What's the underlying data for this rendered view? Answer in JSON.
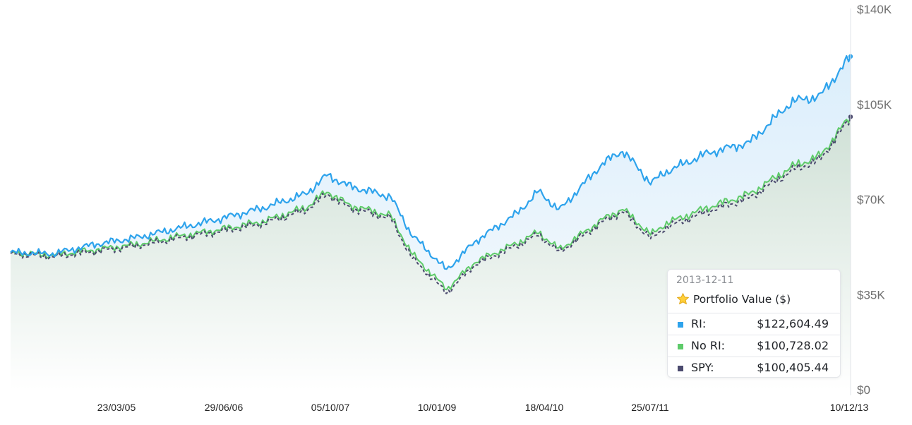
{
  "chart_data": {
    "type": "line",
    "title": "",
    "xlabel": "",
    "ylabel": "",
    "ylim": [
      0,
      140000
    ],
    "y_ticks": [
      "$0",
      "$35K",
      "$70K",
      "$105K",
      "$140K"
    ],
    "y_tick_values": [
      0,
      35000,
      70000,
      105000,
      140000
    ],
    "x_ticks": [
      "23/03/05",
      "29/06/06",
      "05/10/07",
      "10/01/09",
      "18/04/10",
      "25/07/11",
      "10/12/13"
    ],
    "x_range": [
      "2004-01-01",
      "2013-12-11"
    ],
    "grid": false,
    "area_fill": true,
    "x": [
      "2004-01",
      "2004-07",
      "2005-01",
      "2005-07",
      "2006-01",
      "2006-07",
      "2007-01",
      "2007-07",
      "2007-10",
      "2008-01",
      "2008-07",
      "2008-10",
      "2009-03",
      "2009-07",
      "2010-01",
      "2010-04",
      "2010-07",
      "2011-01",
      "2011-04",
      "2011-08",
      "2011-10",
      "2012-04",
      "2012-10",
      "2013-04",
      "2013-08",
      "2013-12"
    ],
    "series": [
      {
        "name": "RI",
        "color": "#2ea3ec",
        "line_style": "solid",
        "values": [
          50500,
          50000,
          53500,
          56000,
          59500,
          63000,
          67000,
          72000,
          79000,
          75000,
          71000,
          57000,
          44000,
          54500,
          65000,
          73000,
          66000,
          83000,
          88000,
          76000,
          80000,
          87000,
          91000,
          106000,
          108000,
          122604.49
        ]
      },
      {
        "name": "No RI",
        "color": "#5ecb6a",
        "line_style": "solid",
        "values": [
          50500,
          49500,
          51500,
          53500,
          56500,
          59000,
          62000,
          67000,
          73000,
          68000,
          64000,
          50000,
          37000,
          47000,
          54000,
          58000,
          51500,
          62500,
          66500,
          57000,
          61000,
          67000,
          72000,
          82000,
          86000,
          100728.02
        ]
      },
      {
        "name": "SPY",
        "color": "#4b4a6e",
        "line_style": "dashed",
        "values": [
          50500,
          49300,
          51300,
          53300,
          56200,
          58700,
          61700,
          66500,
          72500,
          67500,
          63500,
          49000,
          36000,
          46500,
          53500,
          57500,
          51000,
          62000,
          66000,
          56000,
          60000,
          66000,
          71000,
          81000,
          85000,
          100405.44
        ]
      }
    ]
  },
  "tooltip": {
    "date": "2013-12-11",
    "title": "Portfolio Value ($)",
    "rows": [
      {
        "label": "RI:",
        "value": "$122,604.49",
        "color": "#2ea3ec"
      },
      {
        "label": "No RI:",
        "value": "$100,728.02",
        "color": "#5ecb6a"
      },
      {
        "label": "SPY:",
        "value": "$100,405.44",
        "color": "#4b4a6e"
      }
    ]
  }
}
